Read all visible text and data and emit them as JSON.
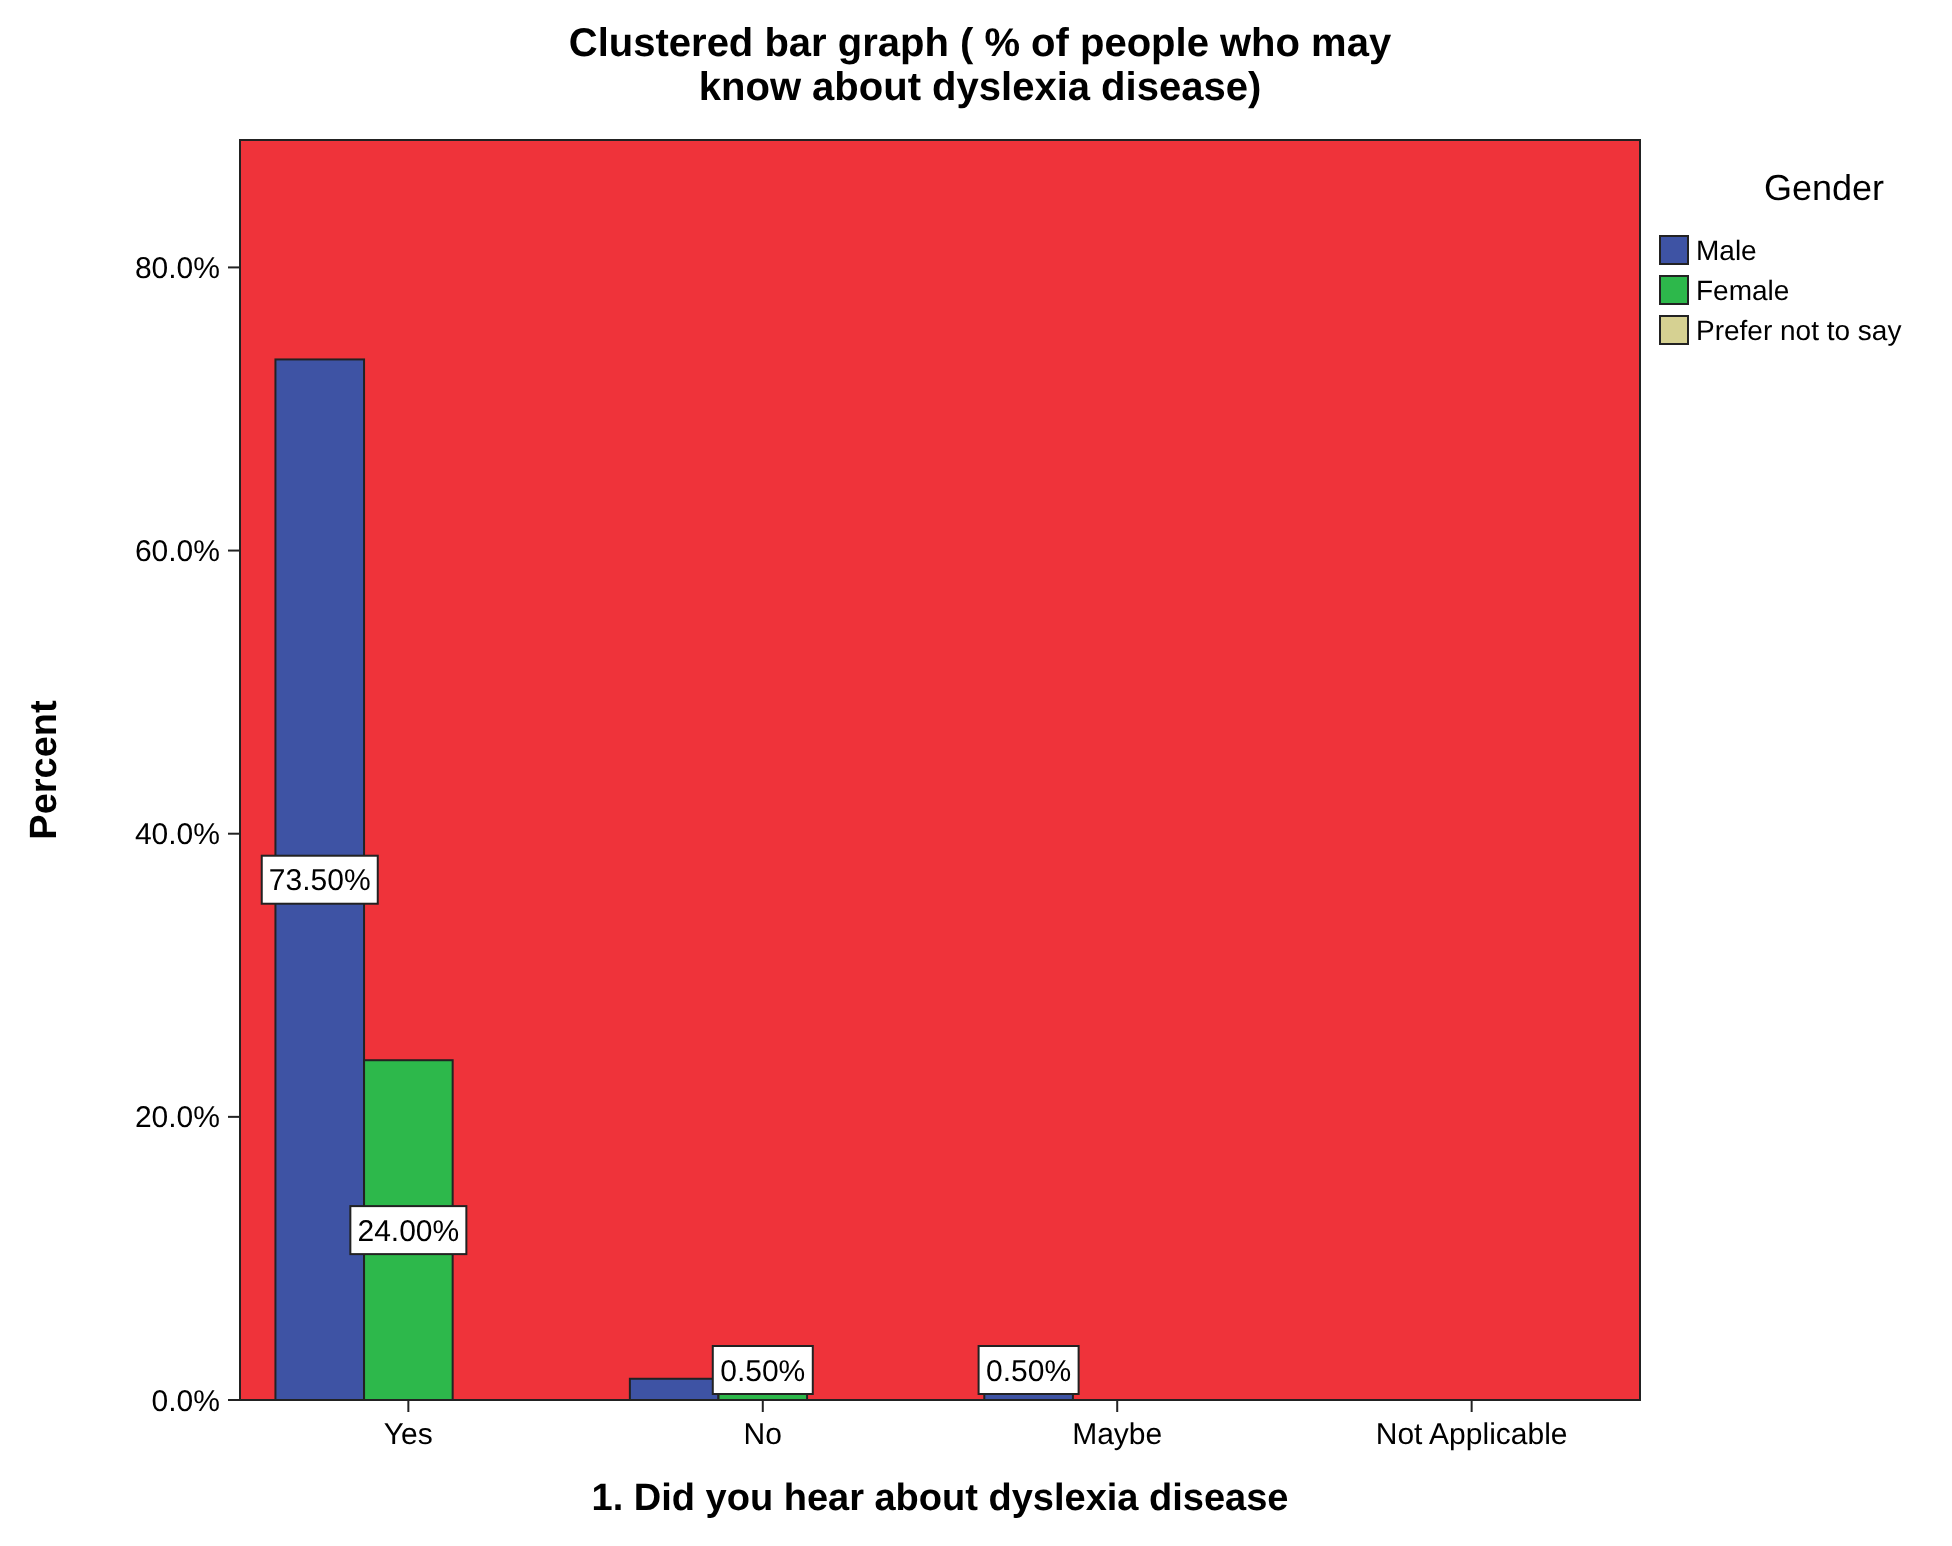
{
  "chart_data": {
    "type": "bar",
    "title": "Clustered bar graph ( % of people who may know about dyslexia disease)",
    "xlabel": "1. Did you hear about dyslexia disease",
    "ylabel": "Percent",
    "legend_title": "Gender",
    "legend": "right",
    "categories": [
      "Yes",
      "No",
      "Maybe",
      "Not Applicable"
    ],
    "series": [
      {
        "name": "Male",
        "color": "#3e53a4",
        "values": [
          73.5,
          1.5,
          0.5,
          null
        ],
        "value_labels": [
          "73.50%",
          null,
          "0.50%",
          null
        ]
      },
      {
        "name": "Female",
        "color": "#2db84b",
        "values": [
          24.0,
          0.5,
          null,
          null
        ],
        "value_labels": [
          "24.00%",
          "0.50%",
          null,
          null
        ]
      },
      {
        "name": "Prefer not to say",
        "color": "#d6d192",
        "values": [
          null,
          null,
          null,
          null
        ]
      }
    ],
    "ylim": [
      0,
      89
    ],
    "yticks": [
      {
        "value": 0,
        "label": "0.0%"
      },
      {
        "value": 20,
        "label": "20.0%"
      },
      {
        "value": 40,
        "label": "40.0%"
      },
      {
        "value": 60,
        "label": "60.0%"
      },
      {
        "value": 80,
        "label": "80.0%"
      }
    ],
    "grid": false
  }
}
